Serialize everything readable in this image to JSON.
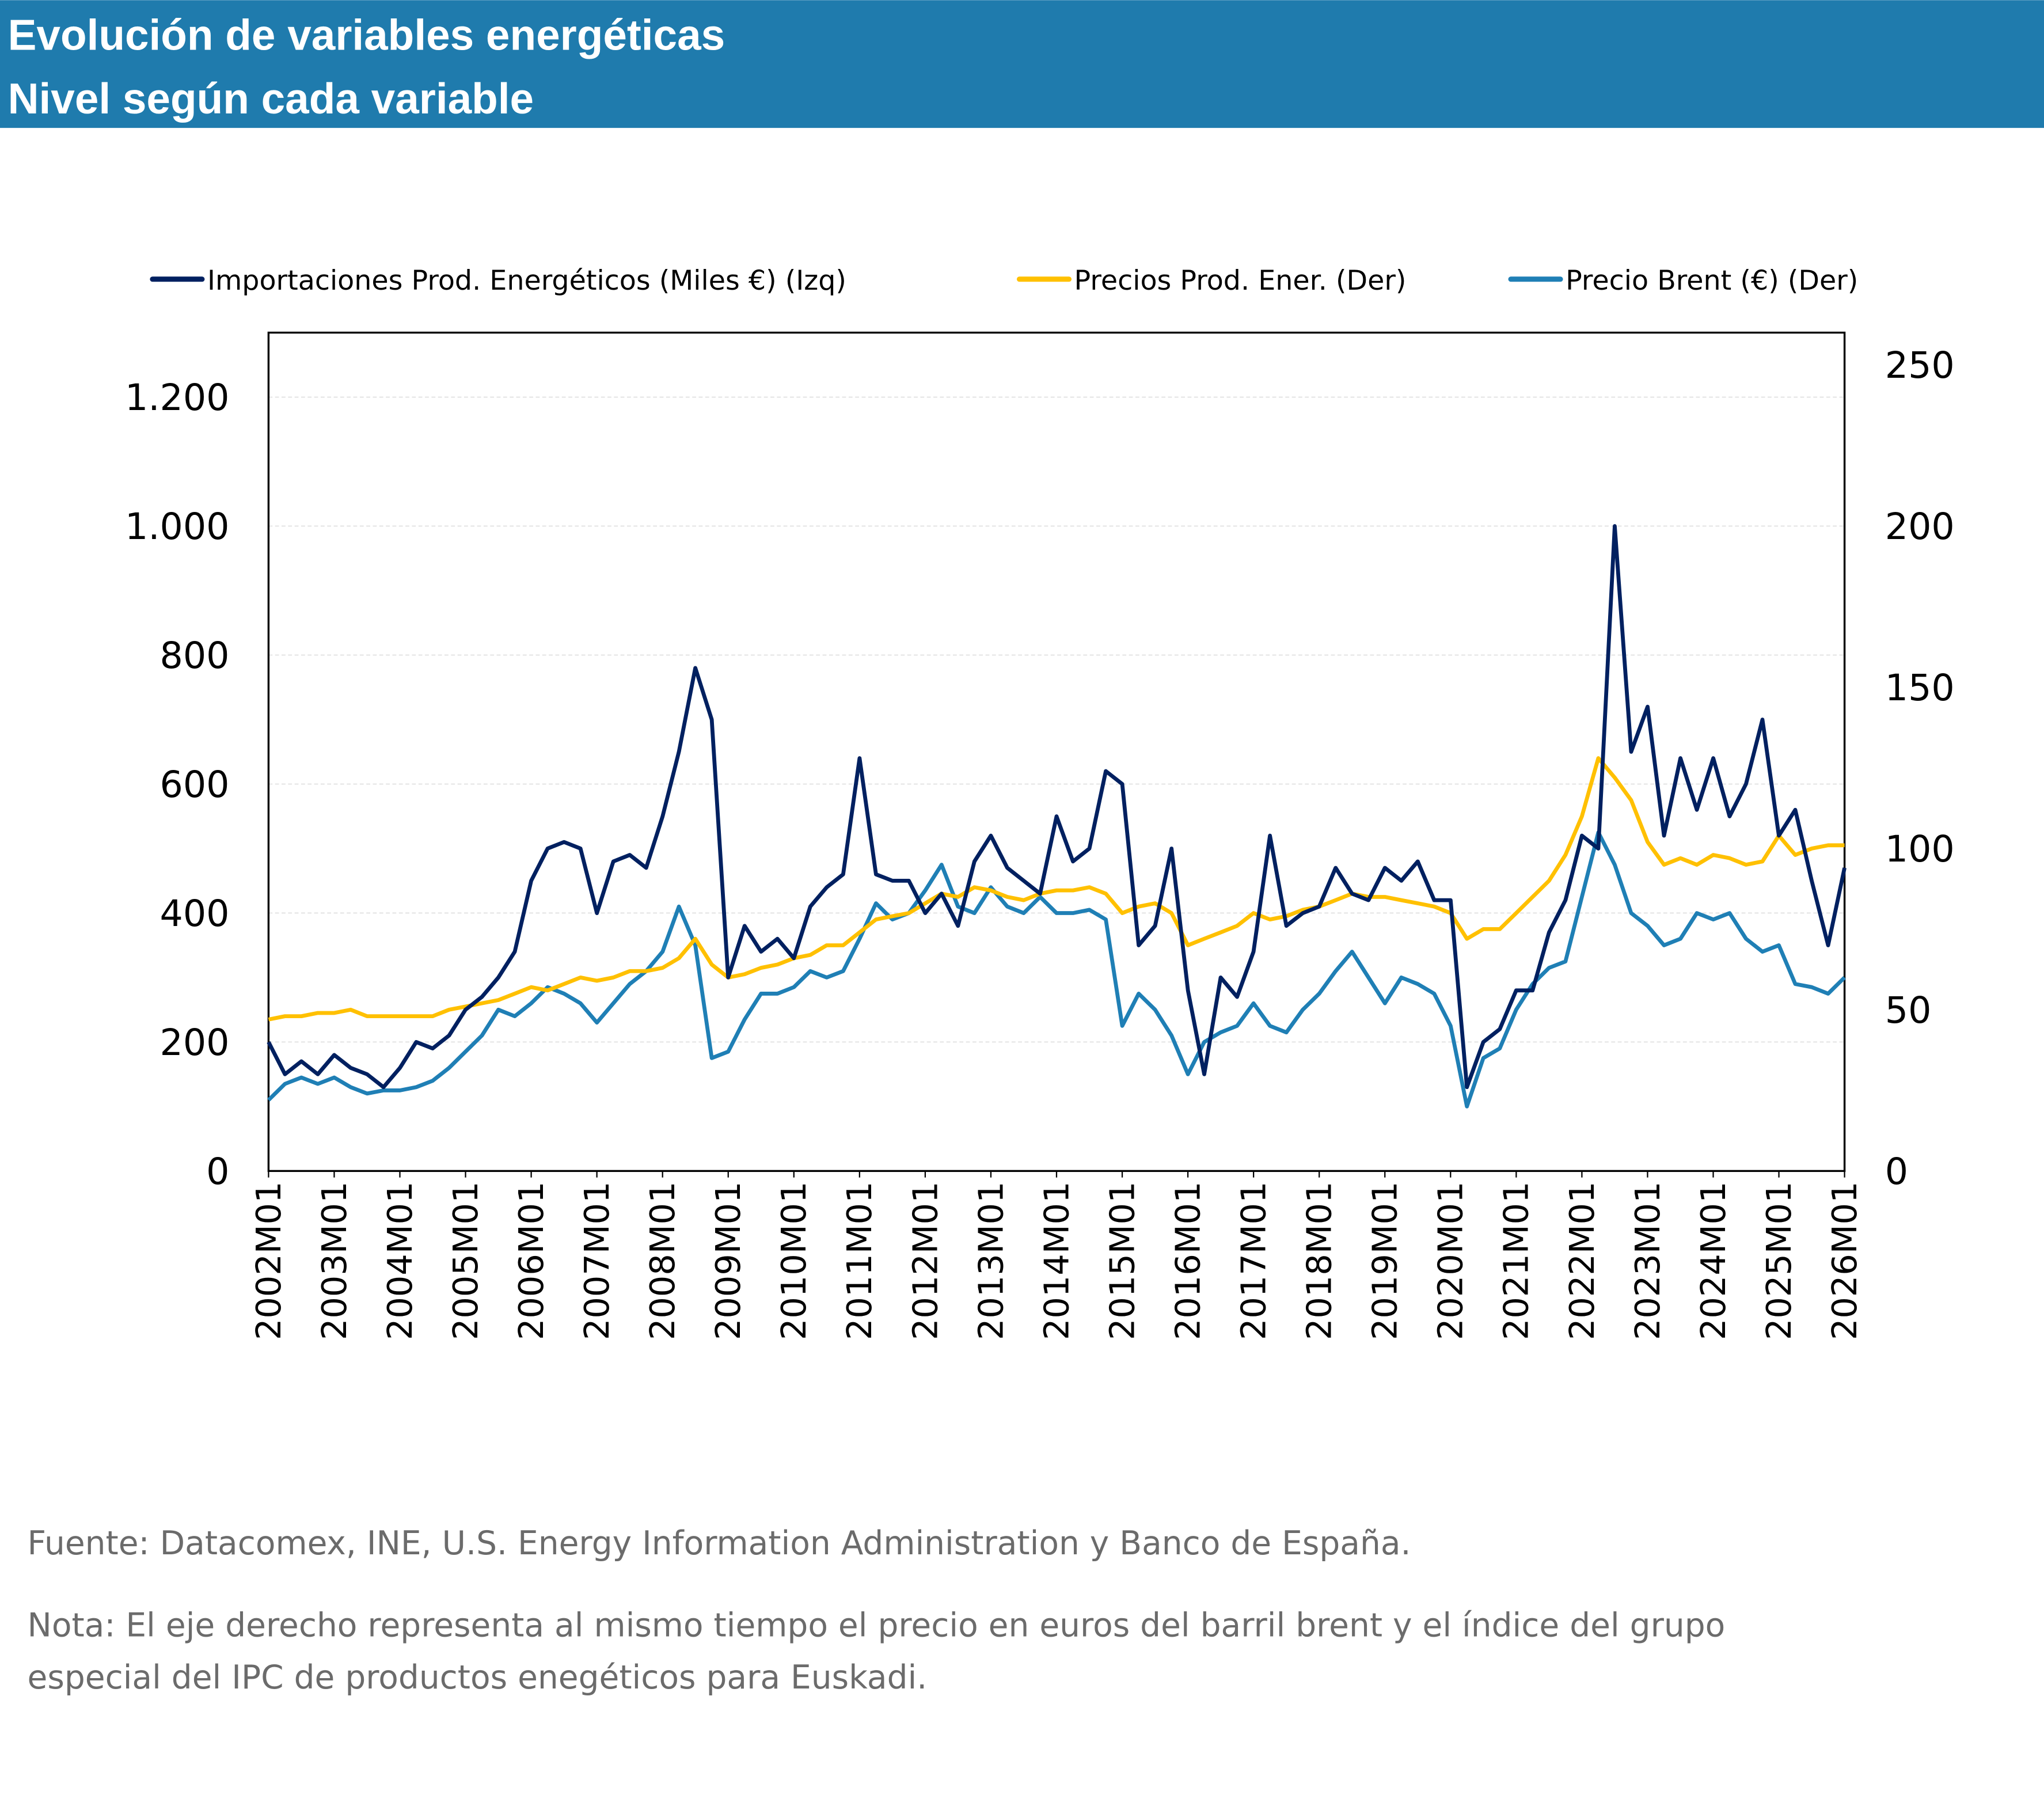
{
  "header": {
    "title": "Evolución de variables energéticas",
    "subtitle": "Nivel según cada variable",
    "color": "#1F7BAD"
  },
  "footer": {
    "source": "Fuente: Datacomex, INE, U.S. Energy Information Administration y Banco de España.",
    "note_line1": "Nota: El eje derecho representa al mismo tiempo el precio en euros del barril brent y el índice del grupo",
    "note_line2": "especial del IPC de productos enegéticos para Euskadi."
  },
  "chart_data": {
    "type": "line",
    "title": "Evolución de variables energéticas",
    "x_start": "2002M01",
    "x_frequency": "quarterly (approximated from monthly series)",
    "x_tick_labels": [
      "2002M01",
      "2003M01",
      "2004M01",
      "2005M01",
      "2006M01",
      "2007M01",
      "2008M01",
      "2009M01",
      "2010M01",
      "2011M01",
      "2012M01",
      "2013M01",
      "2014M01",
      "2015M01",
      "2016M01",
      "2017M01",
      "2018M01",
      "2019M01",
      "2020M01",
      "2021M01",
      "2022M01",
      "2023M01",
      "2024M01",
      "2025M01",
      "2026M01"
    ],
    "y_left": {
      "range": [
        0,
        1300
      ],
      "ticks": [
        0,
        200,
        400,
        600,
        800,
        1000,
        1200
      ],
      "tick_labels": [
        "0",
        "200",
        "400",
        "600",
        "800",
        "1.000",
        "1.200"
      ]
    },
    "y_right": {
      "range": [
        0,
        260
      ],
      "ticks": [
        0,
        50,
        100,
        150,
        200,
        250
      ],
      "tick_labels": [
        "0",
        "50",
        "100",
        "150",
        "200",
        "250"
      ]
    },
    "grid": true,
    "legend_position": "top",
    "series": [
      {
        "name": "Importaciones Prod. Energéticos (Miles €) (Izq)",
        "axis": "left",
        "color": "#002060",
        "values": [
          200,
          150,
          170,
          150,
          180,
          160,
          150,
          130,
          160,
          200,
          190,
          210,
          250,
          270,
          300,
          340,
          450,
          500,
          510,
          500,
          400,
          480,
          490,
          470,
          550,
          650,
          780,
          700,
          300,
          380,
          340,
          360,
          330,
          410,
          440,
          460,
          640,
          460,
          450,
          450,
          400,
          430,
          380,
          480,
          520,
          470,
          450,
          430,
          550,
          480,
          500,
          620,
          600,
          350,
          380,
          500,
          280,
          150,
          300,
          270,
          340,
          520,
          380,
          400,
          410,
          470,
          430,
          420,
          470,
          450,
          480,
          420,
          420,
          130,
          200,
          220,
          280,
          280,
          370,
          420,
          520,
          500,
          1000,
          650,
          720,
          520,
          640,
          560,
          640,
          550,
          600,
          700,
          520,
          560,
          450,
          350,
          470
        ]
      },
      {
        "name": "Precios Prod. Ener. (Der)",
        "axis": "right",
        "color": "#FFC000",
        "values": [
          47,
          48,
          48,
          49,
          49,
          50,
          48,
          48,
          48,
          48,
          48,
          50,
          51,
          52,
          53,
          55,
          57,
          56,
          58,
          60,
          59,
          60,
          62,
          62,
          63,
          66,
          72,
          64,
          60,
          61,
          63,
          64,
          66,
          67,
          70,
          70,
          74,
          78,
          79,
          80,
          83,
          86,
          85,
          88,
          87,
          85,
          84,
          86,
          87,
          87,
          88,
          86,
          80,
          82,
          83,
          80,
          70,
          72,
          74,
          76,
          80,
          78,
          79,
          81,
          82,
          84,
          86,
          85,
          85,
          84,
          83,
          82,
          80,
          72,
          75,
          75,
          80,
          85,
          90,
          98,
          110,
          128,
          122,
          115,
          102,
          95,
          97,
          95,
          98,
          97,
          95,
          96,
          104,
          98,
          100,
          101,
          101
        ]
      },
      {
        "name": "Precio Brent (€) (Der)",
        "axis": "right",
        "color": "#1F7FB5",
        "values": [
          22,
          27,
          29,
          27,
          29,
          26,
          24,
          25,
          25,
          26,
          28,
          32,
          37,
          42,
          50,
          48,
          52,
          57,
          55,
          52,
          46,
          52,
          58,
          62,
          68,
          82,
          70,
          35,
          37,
          47,
          55,
          55,
          57,
          62,
          60,
          62,
          72,
          83,
          78,
          80,
          87,
          95,
          82,
          80,
          88,
          82,
          80,
          85,
          80,
          80,
          81,
          78,
          45,
          55,
          50,
          42,
          30,
          40,
          43,
          45,
          52,
          45,
          43,
          50,
          55,
          62,
          68,
          60,
          52,
          60,
          58,
          55,
          45,
          20,
          35,
          38,
          50,
          58,
          63,
          65,
          85,
          105,
          95,
          80,
          76,
          70,
          72,
          80,
          78,
          80,
          72,
          68,
          70,
          58,
          57,
          55,
          60
        ]
      }
    ]
  }
}
